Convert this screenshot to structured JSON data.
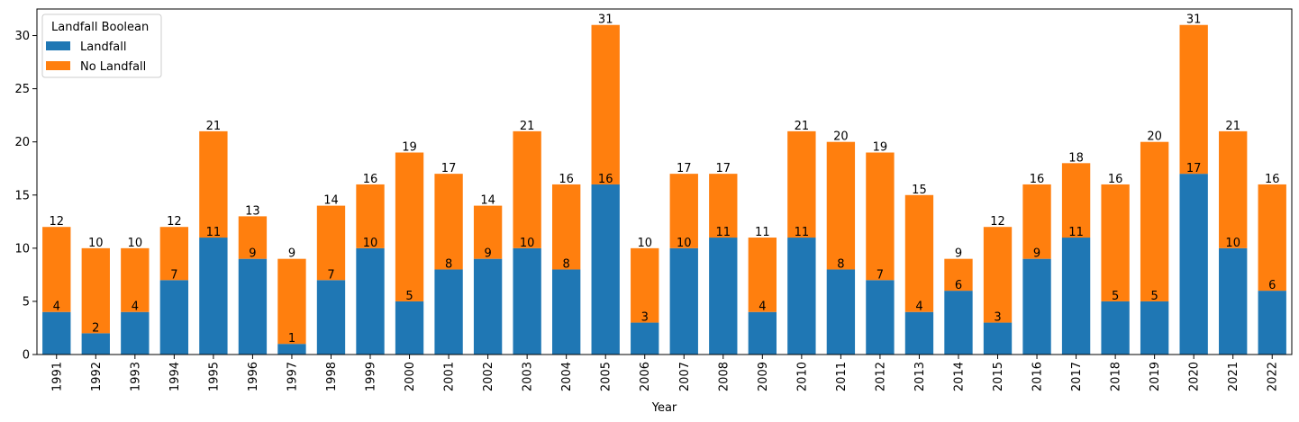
{
  "chart_data": {
    "type": "bar",
    "stacked": true,
    "xlabel": "Year",
    "ylabel": "",
    "ylim": [
      0,
      32.5
    ],
    "yticks": [
      0,
      5,
      10,
      15,
      20,
      25,
      30
    ],
    "grid": false,
    "legend": {
      "title": "Landfall Boolean",
      "placement": "top-left"
    },
    "categories": [
      "1991",
      "1992",
      "1993",
      "1994",
      "1995",
      "1996",
      "1997",
      "1998",
      "1999",
      "2000",
      "2001",
      "2002",
      "2003",
      "2004",
      "2005",
      "2006",
      "2007",
      "2008",
      "2009",
      "2010",
      "2011",
      "2012",
      "2013",
      "2014",
      "2015",
      "2016",
      "2017",
      "2018",
      "2019",
      "2020",
      "2021",
      "2022"
    ],
    "series": [
      {
        "name": "Landfall",
        "color": "#1f77b4",
        "values": [
          4,
          2,
          4,
          7,
          11,
          9,
          1,
          7,
          10,
          5,
          8,
          9,
          10,
          8,
          16,
          3,
          10,
          11,
          4,
          11,
          8,
          7,
          4,
          6,
          3,
          9,
          11,
          5,
          5,
          17,
          10,
          6
        ]
      },
      {
        "name": "No Landfall",
        "color": "#ff7f0e",
        "values": [
          8,
          8,
          6,
          5,
          10,
          4,
          8,
          7,
          6,
          14,
          9,
          5,
          11,
          8,
          15,
          7,
          7,
          6,
          7,
          10,
          12,
          12,
          11,
          3,
          9,
          7,
          7,
          11,
          15,
          14,
          11,
          10
        ]
      }
    ],
    "totals": [
      12,
      10,
      10,
      12,
      21,
      13,
      9,
      14,
      16,
      19,
      17,
      14,
      21,
      16,
      31,
      10,
      17,
      17,
      11,
      21,
      20,
      19,
      15,
      9,
      12,
      16,
      18,
      16,
      20,
      31,
      21,
      16
    ]
  }
}
